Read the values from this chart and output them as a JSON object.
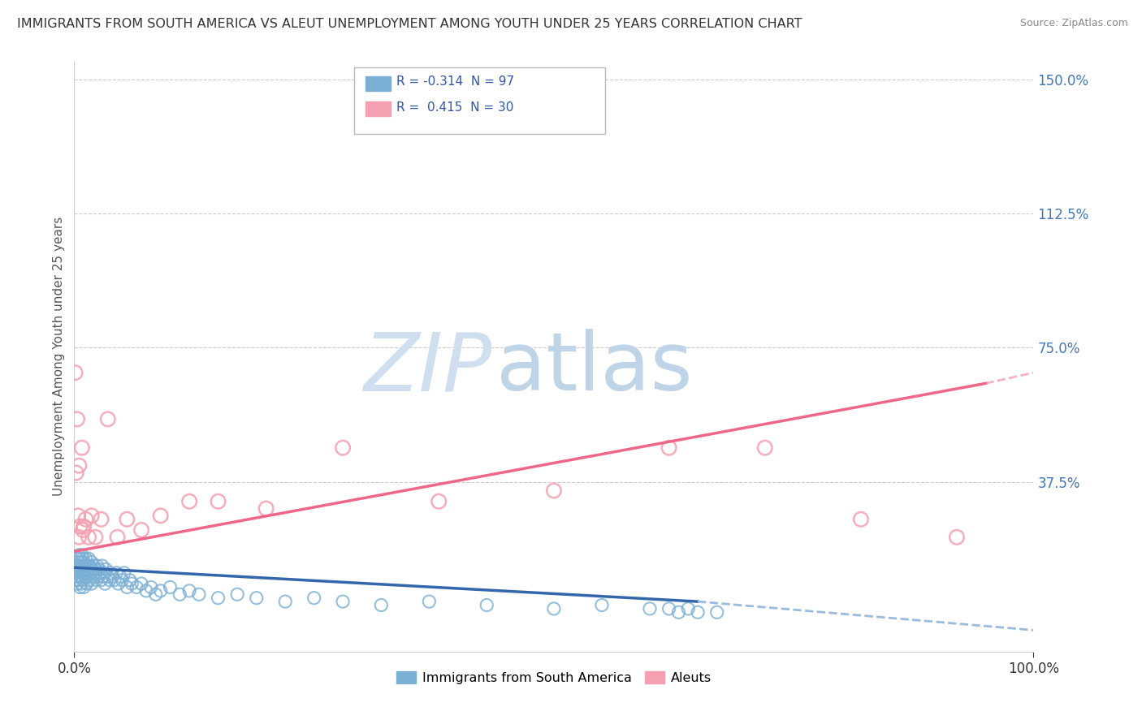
{
  "title": "IMMIGRANTS FROM SOUTH AMERICA VS ALEUT UNEMPLOYMENT AMONG YOUTH UNDER 25 YEARS CORRELATION CHART",
  "source": "Source: ZipAtlas.com",
  "ylabel": "Unemployment Among Youth under 25 years",
  "legend_blue_label": "Immigrants from South America",
  "legend_pink_label": "Aleuts",
  "r_blue": "-0.314",
  "n_blue": "97",
  "r_pink": "0.415",
  "n_pink": "30",
  "blue_color": "#7BAFD4",
  "pink_color": "#F4A0B0",
  "trendline_blue_solid_color": "#3366AA",
  "trendline_blue_dash_color": "#99BBDD",
  "trendline_pink_color": "#EE6688",
  "watermark_zip_color": "#D8E4F0",
  "watermark_atlas_color": "#C8D8E8",
  "blue_scatter_x": [
    0.001,
    0.002,
    0.002,
    0.003,
    0.003,
    0.003,
    0.004,
    0.004,
    0.005,
    0.005,
    0.005,
    0.006,
    0.006,
    0.006,
    0.007,
    0.007,
    0.007,
    0.008,
    0.008,
    0.008,
    0.009,
    0.009,
    0.009,
    0.01,
    0.01,
    0.01,
    0.011,
    0.011,
    0.012,
    0.012,
    0.013,
    0.013,
    0.014,
    0.014,
    0.015,
    0.015,
    0.016,
    0.016,
    0.017,
    0.018,
    0.018,
    0.019,
    0.02,
    0.02,
    0.021,
    0.022,
    0.023,
    0.024,
    0.025,
    0.026,
    0.027,
    0.028,
    0.029,
    0.03,
    0.031,
    0.032,
    0.033,
    0.035,
    0.037,
    0.038,
    0.04,
    0.042,
    0.044,
    0.046,
    0.048,
    0.05,
    0.052,
    0.055,
    0.058,
    0.06,
    0.065,
    0.07,
    0.075,
    0.08,
    0.085,
    0.09,
    0.1,
    0.11,
    0.12,
    0.13,
    0.15,
    0.17,
    0.19,
    0.22,
    0.25,
    0.28,
    0.32,
    0.37,
    0.43,
    0.5,
    0.55,
    0.6,
    0.62,
    0.63,
    0.64,
    0.65,
    0.67
  ],
  "blue_scatter_y": [
    0.12,
    0.14,
    0.1,
    0.13,
    0.16,
    0.09,
    0.15,
    0.11,
    0.14,
    0.17,
    0.1,
    0.13,
    0.16,
    0.08,
    0.12,
    0.15,
    0.09,
    0.14,
    0.11,
    0.17,
    0.13,
    0.1,
    0.16,
    0.12,
    0.15,
    0.08,
    0.14,
    0.11,
    0.13,
    0.16,
    0.12,
    0.09,
    0.14,
    0.11,
    0.13,
    0.16,
    0.1,
    0.14,
    0.12,
    0.15,
    0.09,
    0.13,
    0.14,
    0.11,
    0.12,
    0.13,
    0.1,
    0.14,
    0.11,
    0.13,
    0.12,
    0.1,
    0.14,
    0.11,
    0.12,
    0.09,
    0.13,
    0.11,
    0.1,
    0.12,
    0.11,
    0.1,
    0.12,
    0.09,
    0.11,
    0.1,
    0.12,
    0.08,
    0.1,
    0.09,
    0.08,
    0.09,
    0.07,
    0.08,
    0.06,
    0.07,
    0.08,
    0.06,
    0.07,
    0.06,
    0.05,
    0.06,
    0.05,
    0.04,
    0.05,
    0.04,
    0.03,
    0.04,
    0.03,
    0.02,
    0.03,
    0.02,
    0.02,
    0.01,
    0.02,
    0.01,
    0.01
  ],
  "pink_scatter_x": [
    0.001,
    0.002,
    0.003,
    0.004,
    0.005,
    0.005,
    0.006,
    0.008,
    0.009,
    0.01,
    0.012,
    0.015,
    0.018,
    0.022,
    0.028,
    0.035,
    0.045,
    0.055,
    0.07,
    0.09,
    0.12,
    0.15,
    0.2,
    0.28,
    0.38,
    0.5,
    0.62,
    0.72,
    0.82,
    0.92
  ],
  "pink_scatter_y": [
    0.68,
    0.4,
    0.55,
    0.28,
    0.42,
    0.22,
    0.25,
    0.47,
    0.24,
    0.25,
    0.27,
    0.22,
    0.28,
    0.22,
    0.27,
    0.55,
    0.22,
    0.27,
    0.24,
    0.28,
    0.32,
    0.32,
    0.3,
    0.47,
    0.32,
    0.35,
    0.47,
    0.47,
    0.27,
    0.22
  ],
  "blue_trend_x0": 0.0,
  "blue_trend_y0": 0.135,
  "blue_trend_x1": 0.65,
  "blue_trend_y1": 0.04,
  "blue_trend_dash_x1": 1.0,
  "blue_trend_dash_y1": -0.04,
  "pink_trend_x0": 0.0,
  "pink_trend_y0": 0.18,
  "pink_trend_x1": 0.95,
  "pink_trend_y1": 0.65,
  "pink_trend_dash_x1": 1.0,
  "pink_trend_dash_y1": 0.68,
  "xlim": [
    0.0,
    1.0
  ],
  "ylim": [
    -0.1,
    1.55
  ],
  "yticks": [
    0.375,
    0.75,
    1.125,
    1.5
  ],
  "ytick_labels": [
    "37.5%",
    "75.0%",
    "112.5%",
    "150.0%"
  ],
  "xtick_left": "0.0%",
  "xtick_right": "100.0%",
  "background_color": "#FFFFFF"
}
